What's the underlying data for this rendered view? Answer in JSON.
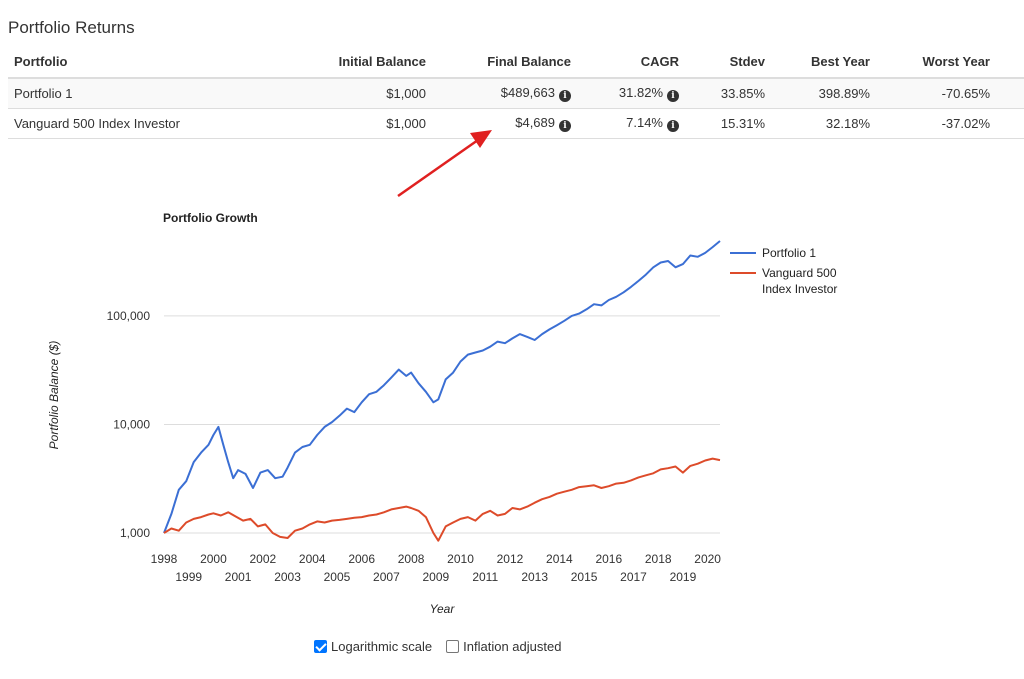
{
  "section_title": "Portfolio Returns",
  "table": {
    "headers": [
      "Portfolio",
      "Initial Balance",
      "Final Balance",
      "CAGR",
      "Stdev",
      "Best Year",
      "Worst Year"
    ],
    "rows": [
      {
        "portfolio": "Portfolio 1",
        "initial": "$1,000",
        "final": "$489,663",
        "cagr": "31.82%",
        "stdev": "33.85%",
        "best": "398.89%",
        "worst": "-70.65%"
      },
      {
        "portfolio": "Vanguard 500 Index Investor",
        "initial": "$1,000",
        "final": "$4,689",
        "cagr": "7.14%",
        "stdev": "15.31%",
        "best": "32.18%",
        "worst": "-37.02%"
      }
    ]
  },
  "annotation": {
    "arrow_color": "#e02020"
  },
  "chart_data": {
    "type": "line",
    "title": "Portfolio Growth",
    "xlabel": "Year",
    "ylabel": "Portfolio Balance ($)",
    "yscale": "log",
    "ylim": [
      1000,
      500000
    ],
    "xlim": [
      1998,
      2020.5
    ],
    "x_ticks": [
      "1998",
      "1999",
      "2000",
      "2001",
      "2002",
      "2003",
      "2004",
      "2005",
      "2006",
      "2007",
      "2008",
      "2009",
      "2010",
      "2011",
      "2012",
      "2013",
      "2014",
      "2015",
      "2016",
      "2017",
      "2018",
      "2019",
      "2020"
    ],
    "y_ticks": [
      {
        "value": 1000,
        "label": "1,000"
      },
      {
        "value": 10000,
        "label": "10,000"
      },
      {
        "value": 100000,
        "label": "100,000"
      }
    ],
    "grid": true,
    "legend_position": "right",
    "series": [
      {
        "name": "Portfolio 1",
        "color": "#3b6fd4",
        "x": [
          1998.0,
          1998.3,
          1998.6,
          1998.9,
          1999.2,
          1999.5,
          1999.8,
          2000.0,
          2000.2,
          2000.4,
          2000.6,
          2000.8,
          2001.0,
          2001.3,
          2001.6,
          2001.9,
          2002.2,
          2002.5,
          2002.8,
          2003.0,
          2003.3,
          2003.6,
          2003.9,
          2004.2,
          2004.5,
          2004.8,
          2005.1,
          2005.4,
          2005.7,
          2006.0,
          2006.3,
          2006.6,
          2006.9,
          2007.2,
          2007.5,
          2007.8,
          2008.0,
          2008.3,
          2008.6,
          2008.9,
          2009.1,
          2009.4,
          2009.7,
          2010.0,
          2010.3,
          2010.6,
          2010.9,
          2011.2,
          2011.5,
          2011.8,
          2012.1,
          2012.4,
          2012.7,
          2013.0,
          2013.3,
          2013.6,
          2013.9,
          2014.2,
          2014.5,
          2014.8,
          2015.1,
          2015.4,
          2015.7,
          2016.0,
          2016.3,
          2016.6,
          2016.9,
          2017.2,
          2017.5,
          2017.8,
          2018.1,
          2018.4,
          2018.7,
          2019.0,
          2019.3,
          2019.6,
          2019.9,
          2020.2,
          2020.5
        ],
        "values": [
          1000,
          1500,
          2500,
          3000,
          4500,
          5500,
          6500,
          8000,
          9500,
          6500,
          4500,
          3200,
          3800,
          3500,
          2600,
          3600,
          3800,
          3200,
          3300,
          4000,
          5500,
          6200,
          6500,
          8000,
          9500,
          10500,
          12000,
          14000,
          13000,
          16000,
          19000,
          20000,
          23000,
          27000,
          32000,
          28000,
          30000,
          24000,
          20000,
          16000,
          17000,
          26000,
          30000,
          38000,
          44000,
          46000,
          48000,
          52000,
          58000,
          56000,
          62000,
          68000,
          64000,
          60000,
          68000,
          75000,
          82000,
          90000,
          100000,
          105000,
          115000,
          128000,
          125000,
          140000,
          150000,
          165000,
          185000,
          210000,
          240000,
          280000,
          310000,
          320000,
          280000,
          300000,
          360000,
          350000,
          380000,
          430000,
          489663
        ]
      },
      {
        "name": "Vanguard 500 Index Investor",
        "color": "#dd4b2a",
        "x": [
          1998.0,
          1998.3,
          1998.6,
          1998.9,
          1999.2,
          1999.5,
          1999.8,
          2000.0,
          2000.3,
          2000.6,
          2000.9,
          2001.2,
          2001.5,
          2001.8,
          2002.1,
          2002.4,
          2002.7,
          2003.0,
          2003.3,
          2003.6,
          2003.9,
          2004.2,
          2004.5,
          2004.8,
          2005.1,
          2005.4,
          2005.7,
          2006.0,
          2006.3,
          2006.6,
          2006.9,
          2007.2,
          2007.5,
          2007.8,
          2008.0,
          2008.3,
          2008.6,
          2008.9,
          2009.1,
          2009.4,
          2009.7,
          2010.0,
          2010.3,
          2010.6,
          2010.9,
          2011.2,
          2011.5,
          2011.8,
          2012.1,
          2012.4,
          2012.7,
          2013.0,
          2013.3,
          2013.6,
          2013.9,
          2014.2,
          2014.5,
          2014.8,
          2015.1,
          2015.4,
          2015.7,
          2016.0,
          2016.3,
          2016.6,
          2016.9,
          2017.2,
          2017.5,
          2017.8,
          2018.1,
          2018.4,
          2018.7,
          2019.0,
          2019.3,
          2019.6,
          2019.9,
          2020.2,
          2020.5
        ],
        "values": [
          1000,
          1100,
          1050,
          1250,
          1350,
          1400,
          1480,
          1520,
          1450,
          1550,
          1420,
          1300,
          1350,
          1150,
          1200,
          1000,
          920,
          900,
          1050,
          1100,
          1200,
          1280,
          1250,
          1300,
          1320,
          1350,
          1380,
          1400,
          1450,
          1480,
          1550,
          1650,
          1700,
          1750,
          1700,
          1600,
          1400,
          1000,
          850,
          1150,
          1250,
          1350,
          1400,
          1300,
          1500,
          1600,
          1450,
          1500,
          1700,
          1650,
          1750,
          1900,
          2050,
          2150,
          2300,
          2400,
          2500,
          2650,
          2700,
          2750,
          2600,
          2700,
          2850,
          2900,
          3050,
          3250,
          3400,
          3550,
          3850,
          3950,
          4100,
          3600,
          4150,
          4350,
          4650,
          4850,
          4689
        ]
      }
    ]
  },
  "options": {
    "log_scale_label": "Logarithmic scale",
    "log_scale_checked": true,
    "inflation_label": "Inflation adjusted",
    "inflation_checked": false
  }
}
